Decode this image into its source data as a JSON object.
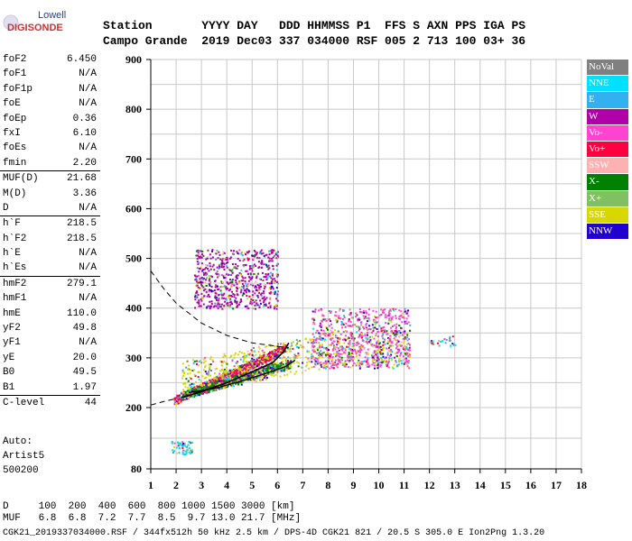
{
  "logo": {
    "line1": "Lowell",
    "line2": "DIGISONDE"
  },
  "header": {
    "row1": "Station       YYYY DAY   DDD HHMMSS P1  FFS S AXN PPS IGA PS",
    "row2": "Campo Grande  2019 Dec03 337 034000 RSF 005 2 713 100 03+ 36"
  },
  "params": [
    {
      "name": "foF2",
      "value": "6.450",
      "sep": false
    },
    {
      "name": "foF1",
      "value": "N/A",
      "sep": false
    },
    {
      "name": "foF1p",
      "value": "N/A",
      "sep": false
    },
    {
      "name": "foE",
      "value": "N/A",
      "sep": false
    },
    {
      "name": "foEp",
      "value": "0.36",
      "sep": false
    },
    {
      "name": "fxI",
      "value": "6.10",
      "sep": false
    },
    {
      "name": "foEs",
      "value": "N/A",
      "sep": false
    },
    {
      "name": "fmin",
      "value": "2.20",
      "sep": false
    },
    {
      "name": "MUF(D)",
      "value": "21.68",
      "sep": true
    },
    {
      "name": "M(D)",
      "value": "3.36",
      "sep": false
    },
    {
      "name": "D",
      "value": "N/A",
      "sep": false
    },
    {
      "name": "h`F",
      "value": "218.5",
      "sep": true
    },
    {
      "name": "h`F2",
      "value": "218.5",
      "sep": false
    },
    {
      "name": "h`E",
      "value": "N/A",
      "sep": false
    },
    {
      "name": "h`Es",
      "value": "N/A",
      "sep": false
    },
    {
      "name": "hmF2",
      "value": "279.1",
      "sep": true
    },
    {
      "name": "hmF1",
      "value": "N/A",
      "sep": false
    },
    {
      "name": "hmE",
      "value": "110.0",
      "sep": false
    },
    {
      "name": "yF2",
      "value": "49.8",
      "sep": false
    },
    {
      "name": "yF1",
      "value": "N/A",
      "sep": false
    },
    {
      "name": "yE",
      "value": "20.0",
      "sep": false
    },
    {
      "name": "B0",
      "value": "49.5",
      "sep": false
    },
    {
      "name": "B1",
      "value": "1.97",
      "sep": false
    },
    {
      "name": "C-level",
      "value": "44",
      "sep": true
    }
  ],
  "auto": {
    "line1": "Auto:",
    "line2": "Artist5",
    "line3": "500200"
  },
  "legend": [
    {
      "label": "NoVal",
      "color": "#808080"
    },
    {
      "label": "NNE",
      "color": "#00e0ff"
    },
    {
      "label": "E",
      "color": "#33b0f0"
    },
    {
      "label": "W",
      "color": "#b000a8"
    },
    {
      "label": "Vo-",
      "color": "#ff44d0"
    },
    {
      "label": "Vo+",
      "color": "#ff0040"
    },
    {
      "label": "SSW",
      "color": "#ffb0b0"
    },
    {
      "label": "X-",
      "color": "#008000"
    },
    {
      "label": "X+",
      "color": "#80c060"
    },
    {
      "label": "SSE",
      "color": "#d8d800"
    },
    {
      "label": "NNW",
      "color": "#2000d0"
    }
  ],
  "footer": {
    "row1": "D     100  200  400  600  800 1000 1500 3000 [km]",
    "row2": "MUF   6.8  6.8  7.2  7.7  8.5  9.7 13.0 21.7 [MHz]",
    "row3": "CGK21_2019337034000.RSF / 344fx512h 50 kHz 2.5 km / DPS-4D CGK21 821 / 20.5 S 305.0 E Ion2Png 1.3.20"
  },
  "chart_data": {
    "type": "scatter",
    "xlim": [
      1,
      18
    ],
    "ylim": [
      80,
      900
    ],
    "x_ticks": [
      "1",
      "2",
      "3",
      "4",
      "5",
      "6",
      "7",
      "8",
      "9",
      "10",
      "11",
      "12",
      "13",
      "14",
      "15",
      "16",
      "17",
      "18"
    ],
    "y_ticks": [
      "80",
      "200",
      "300",
      "400",
      "500",
      "600",
      "700",
      "800",
      "900"
    ],
    "grid": true,
    "xlabel": "",
    "ylabel": "",
    "clusters": [
      {
        "name": "O-trace low",
        "color": "#ff0040",
        "x": [
          1.9,
          6.3
        ],
        "y": [
          215,
          320
        ]
      },
      {
        "name": "X-trace",
        "color": "#008000",
        "x": [
          2.2,
          6.5
        ],
        "y": [
          225,
          290
        ]
      },
      {
        "name": "Oblique spread",
        "color": "#d8d800",
        "x": [
          2.2,
          11.2
        ],
        "y": [
          260,
          380
        ]
      },
      {
        "name": "High spread F",
        "color": "#ff44d0",
        "x": [
          7.3,
          11.2
        ],
        "y": [
          280,
          400
        ]
      },
      {
        "name": "Spread echoes 2",
        "color": "#b000a8",
        "x": [
          2.7,
          6.0
        ],
        "y": [
          400,
          520
        ]
      },
      {
        "name": "E-layer",
        "color": "#00e0ff",
        "x": [
          1.8,
          2.6
        ],
        "y": [
          110,
          135
        ]
      },
      {
        "name": "Far echo",
        "color": "#00e0ff",
        "x": [
          12.0,
          13.0
        ],
        "y": [
          325,
          345
        ]
      }
    ],
    "profile_true_height": [
      [
        2.2,
        220
      ],
      [
        3.0,
        232
      ],
      [
        4.0,
        250
      ],
      [
        5.0,
        272
      ],
      [
        5.8,
        290
      ],
      [
        6.2,
        310
      ],
      [
        6.45,
        330
      ]
    ],
    "profile_x_trace": [
      [
        2.5,
        230
      ],
      [
        3.5,
        238
      ],
      [
        4.5,
        252
      ],
      [
        5.5,
        268
      ],
      [
        6.3,
        282
      ],
      [
        6.7,
        295
      ]
    ],
    "model_upper_dashed": [
      [
        1,
        475
      ],
      [
        1.5,
        440
      ],
      [
        2,
        410
      ],
      [
        3,
        370
      ],
      [
        4,
        345
      ],
      [
        5,
        330
      ],
      [
        6.45,
        320
      ]
    ],
    "model_lower_dashed": [
      [
        1,
        205
      ],
      [
        1.5,
        212
      ],
      [
        2,
        218
      ]
    ]
  }
}
